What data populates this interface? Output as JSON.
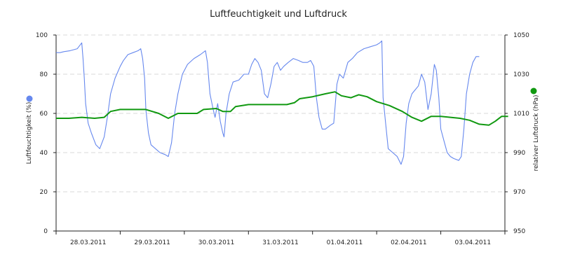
{
  "chart_data": {
    "type": "line",
    "title": "Luftfeuchtigkeit und Luftdruck",
    "y_left": {
      "label": "Luftfeuchtigkeit (%)",
      "ylim": [
        0,
        100
      ],
      "ticks": [
        "0",
        "20",
        "40",
        "60",
        "80",
        "100"
      ],
      "color": "#6688ee"
    },
    "y_right": {
      "label": "relativer Luftdruck (hPa)",
      "ylim": [
        950,
        1050
      ],
      "ticks": [
        "950",
        "970",
        "990",
        "1010",
        "1030",
        "1050"
      ],
      "color": "#119911"
    },
    "x_ticks": [
      "28.03.2011",
      "29.03.2011",
      "30.03.2011",
      "31.03.2011",
      "01.04.2011",
      "02.04.2011",
      "03.04.2011"
    ],
    "x_range_days": [
      0,
      7
    ],
    "grid": true,
    "series": [
      {
        "name": "Luftfeuchtigkeit (%)",
        "axis": "left",
        "color": "#6688ee",
        "points": [
          [
            0.0,
            91
          ],
          [
            0.06,
            91
          ],
          [
            0.12,
            91.5
          ],
          [
            0.22,
            92
          ],
          [
            0.33,
            93
          ],
          [
            0.4,
            96
          ],
          [
            0.42,
            88
          ],
          [
            0.44,
            78
          ],
          [
            0.46,
            65
          ],
          [
            0.5,
            55
          ],
          [
            0.55,
            50
          ],
          [
            0.62,
            44
          ],
          [
            0.68,
            42
          ],
          [
            0.75,
            48
          ],
          [
            0.8,
            58
          ],
          [
            0.85,
            70
          ],
          [
            0.92,
            78
          ],
          [
            1.0,
            84
          ],
          [
            1.05,
            87
          ],
          [
            1.12,
            90
          ],
          [
            1.2,
            91
          ],
          [
            1.28,
            92
          ],
          [
            1.32,
            93
          ],
          [
            1.35,
            88
          ],
          [
            1.38,
            78
          ],
          [
            1.4,
            62
          ],
          [
            1.44,
            50
          ],
          [
            1.48,
            44
          ],
          [
            1.55,
            42
          ],
          [
            1.62,
            40
          ],
          [
            1.7,
            39
          ],
          [
            1.75,
            38
          ],
          [
            1.8,
            45
          ],
          [
            1.85,
            60
          ],
          [
            1.9,
            70
          ],
          [
            1.97,
            80
          ],
          [
            2.05,
            85
          ],
          [
            2.15,
            88
          ],
          [
            2.25,
            90
          ],
          [
            2.33,
            92
          ],
          [
            2.36,
            86
          ],
          [
            2.4,
            70
          ],
          [
            2.45,
            62
          ],
          [
            2.48,
            58
          ],
          [
            2.52,
            65
          ],
          [
            2.56,
            56
          ],
          [
            2.6,
            50
          ],
          [
            2.62,
            48
          ],
          [
            2.65,
            60
          ],
          [
            2.7,
            70
          ],
          [
            2.76,
            76
          ],
          [
            2.85,
            77
          ],
          [
            2.93,
            80
          ],
          [
            3.0,
            80
          ],
          [
            3.05,
            85
          ],
          [
            3.1,
            88
          ],
          [
            3.15,
            86
          ],
          [
            3.2,
            82
          ],
          [
            3.25,
            70
          ],
          [
            3.3,
            68
          ],
          [
            3.35,
            75
          ],
          [
            3.4,
            84
          ],
          [
            3.45,
            86
          ],
          [
            3.5,
            82
          ],
          [
            3.55,
            84
          ],
          [
            3.62,
            86
          ],
          [
            3.7,
            88
          ],
          [
            3.78,
            87
          ],
          [
            3.85,
            86
          ],
          [
            3.92,
            86
          ],
          [
            3.97,
            87
          ],
          [
            4.02,
            84
          ],
          [
            4.06,
            68
          ],
          [
            4.1,
            58
          ],
          [
            4.15,
            52
          ],
          [
            4.2,
            52
          ],
          [
            4.28,
            54
          ],
          [
            4.33,
            55
          ],
          [
            4.38,
            75
          ],
          [
            4.42,
            80
          ],
          [
            4.48,
            78
          ],
          [
            4.55,
            86
          ],
          [
            4.62,
            88
          ],
          [
            4.7,
            91
          ],
          [
            4.8,
            93
          ],
          [
            4.9,
            94
          ],
          [
            5.0,
            95
          ],
          [
            5.05,
            96
          ],
          [
            5.08,
            97
          ],
          [
            5.1,
            68
          ],
          [
            5.14,
            55
          ],
          [
            5.18,
            42
          ],
          [
            5.25,
            40
          ],
          [
            5.32,
            38
          ],
          [
            5.38,
            34
          ],
          [
            5.42,
            38
          ],
          [
            5.46,
            55
          ],
          [
            5.5,
            65
          ],
          [
            5.55,
            70
          ],
          [
            5.6,
            72
          ],
          [
            5.65,
            74
          ],
          [
            5.7,
            80
          ],
          [
            5.75,
            76
          ],
          [
            5.8,
            62
          ],
          [
            5.85,
            70
          ],
          [
            5.9,
            85
          ],
          [
            5.93,
            82
          ],
          [
            5.97,
            68
          ],
          [
            6.0,
            52
          ],
          [
            6.05,
            46
          ],
          [
            6.1,
            40
          ],
          [
            6.15,
            38
          ],
          [
            6.2,
            37
          ],
          [
            6.28,
            36
          ],
          [
            6.32,
            38
          ],
          [
            6.36,
            52
          ],
          [
            6.4,
            70
          ],
          [
            6.45,
            80
          ],
          [
            6.5,
            86
          ],
          [
            6.55,
            89
          ],
          [
            6.6,
            89
          ]
        ]
      },
      {
        "name": "relativer Luftdruck (hPa)",
        "axis": "right",
        "color": "#119911",
        "points": [
          [
            0.0,
            1007.5
          ],
          [
            0.2,
            1007.5
          ],
          [
            0.4,
            1008
          ],
          [
            0.6,
            1007.5
          ],
          [
            0.75,
            1008
          ],
          [
            0.85,
            1011
          ],
          [
            1.0,
            1012
          ],
          [
            1.2,
            1012
          ],
          [
            1.4,
            1012
          ],
          [
            1.6,
            1010
          ],
          [
            1.75,
            1007.5
          ],
          [
            1.9,
            1010
          ],
          [
            2.0,
            1010
          ],
          [
            2.2,
            1010
          ],
          [
            2.3,
            1012
          ],
          [
            2.5,
            1012.5
          ],
          [
            2.6,
            1011
          ],
          [
            2.72,
            1011
          ],
          [
            2.8,
            1013.5
          ],
          [
            3.0,
            1014.5
          ],
          [
            3.2,
            1014.5
          ],
          [
            3.4,
            1014.5
          ],
          [
            3.6,
            1014.5
          ],
          [
            3.72,
            1015.5
          ],
          [
            3.8,
            1017.5
          ],
          [
            4.0,
            1018.5
          ],
          [
            4.2,
            1020
          ],
          [
            4.35,
            1021
          ],
          [
            4.45,
            1019
          ],
          [
            4.6,
            1018
          ],
          [
            4.72,
            1019.5
          ],
          [
            4.85,
            1018.5
          ],
          [
            5.0,
            1016
          ],
          [
            5.2,
            1014
          ],
          [
            5.4,
            1011
          ],
          [
            5.55,
            1008
          ],
          [
            5.7,
            1006
          ],
          [
            5.85,
            1008.5
          ],
          [
            6.0,
            1008.5
          ],
          [
            6.15,
            1008
          ],
          [
            6.3,
            1007.5
          ],
          [
            6.45,
            1006.5
          ],
          [
            6.6,
            1004.5
          ],
          [
            6.75,
            1004
          ],
          [
            6.85,
            1006
          ],
          [
            6.95,
            1008.5
          ],
          [
            7.05,
            1008.5
          ]
        ]
      }
    ]
  },
  "legend": [
    {
      "name": "Luftfeuchtigkeit (%)",
      "color": "#6688ee"
    },
    {
      "name": "relativer Luftdruck (hPa)",
      "color": "#119911"
    }
  ]
}
